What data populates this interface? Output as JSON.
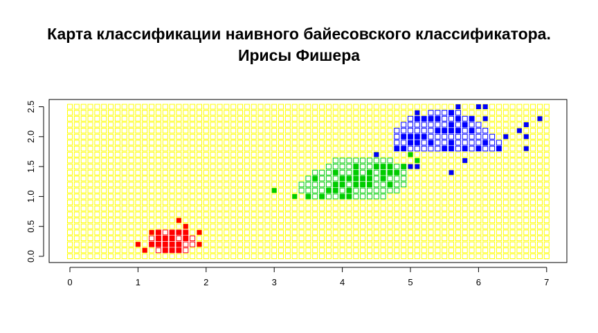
{
  "chart_data": {
    "type": "scatter",
    "title_lines": [
      "Карта классификации наивного байесовского классификатора.",
      "Ирисы Фишера"
    ],
    "xlabel": "",
    "ylabel": "",
    "xlim": [
      0,
      7
    ],
    "ylim": [
      0,
      2.5
    ],
    "x_ticks": [
      "0",
      "1",
      "2",
      "3",
      "4",
      "5",
      "6",
      "7"
    ],
    "y_ticks": [
      "0.0",
      "0.5",
      "1.0",
      "1.5",
      "2.0",
      "2.5"
    ],
    "grid": {
      "description": "classification map: hollow squares on a regular grid",
      "x_step": 0.1,
      "y_step": 0.1,
      "x_range": [
        0,
        7
      ],
      "y_range": [
        0,
        2.5
      ],
      "default_class": "background",
      "regions": [
        {
          "class": "setosa",
          "rows": [
            {
              "y": 0.1,
              "x": [
                1.3,
                1.7
              ]
            },
            {
              "y": 0.2,
              "x": [
                1.2,
                1.8
              ]
            },
            {
              "y": 0.3,
              "x": [
                1.2,
                1.8
              ]
            },
            {
              "y": 0.4,
              "x": [
                1.3,
                1.7
              ]
            }
          ]
        },
        {
          "class": "versicolor",
          "rows": [
            {
              "y": 1.0,
              "x": [
                3.5,
                4.6
              ]
            },
            {
              "y": 1.1,
              "x": [
                3.4,
                4.8
              ]
            },
            {
              "y": 1.2,
              "x": [
                3.4,
                4.9
              ]
            },
            {
              "y": 1.3,
              "x": [
                3.5,
                4.9
              ]
            },
            {
              "y": 1.4,
              "x": [
                3.6,
                4.9
              ]
            },
            {
              "y": 1.5,
              "x": [
                3.8,
                4.9
              ]
            },
            {
              "y": 1.6,
              "x": [
                3.9,
                4.7
              ]
            }
          ]
        },
        {
          "class": "virginica",
          "rows": [
            {
              "y": 1.8,
              "x": [
                4.8,
                6.3
              ]
            },
            {
              "y": 1.9,
              "x": [
                4.8,
                6.3
              ]
            },
            {
              "y": 2.0,
              "x": [
                4.8,
                6.2
              ]
            },
            {
              "y": 2.1,
              "x": [
                4.8,
                6.1
              ]
            },
            {
              "y": 2.2,
              "x": [
                4.9,
                6.0
              ]
            },
            {
              "y": 2.3,
              "x": [
                5.0,
                5.9
              ]
            },
            {
              "y": 2.4,
              "x": [
                5.3,
                5.7
              ]
            }
          ]
        }
      ]
    },
    "classes": {
      "background": "#ffff00",
      "setosa": "#ff0000",
      "versicolor": "#00cc00",
      "virginica": "#0000ff"
    },
    "series": [
      {
        "class": "setosa",
        "points": [
          [
            1.4,
            0.2
          ],
          [
            1.3,
            0.2
          ],
          [
            1.5,
            0.2
          ],
          [
            1.7,
            0.4
          ],
          [
            1.4,
            0.3
          ],
          [
            1.5,
            0.1
          ],
          [
            1.6,
            0.2
          ],
          [
            1.1,
            0.1
          ],
          [
            1.2,
            0.2
          ],
          [
            1.3,
            0.4
          ],
          [
            1.7,
            0.3
          ],
          [
            1.0,
            0.2
          ],
          [
            1.7,
            0.5
          ],
          [
            1.9,
            0.2
          ],
          [
            1.6,
            0.4
          ],
          [
            1.5,
            0.4
          ],
          [
            1.4,
            0.1
          ],
          [
            1.5,
            0.3
          ],
          [
            1.6,
            0.6
          ],
          [
            1.9,
            0.4
          ],
          [
            1.3,
            0.3
          ],
          [
            1.6,
            0.1
          ],
          [
            1.2,
            0.4
          ]
        ]
      },
      {
        "class": "versicolor",
        "points": [
          [
            4.7,
            1.4
          ],
          [
            4.5,
            1.5
          ],
          [
            4.9,
            1.5
          ],
          [
            4.0,
            1.3
          ],
          [
            4.6,
            1.5
          ],
          [
            3.3,
            1.0
          ],
          [
            4.6,
            1.3
          ],
          [
            3.9,
            1.4
          ],
          [
            3.5,
            1.0
          ],
          [
            4.2,
            1.5
          ],
          [
            4.0,
            1.0
          ],
          [
            4.7,
            1.4
          ],
          [
            3.6,
            1.3
          ],
          [
            4.4,
            1.4
          ],
          [
            4.5,
            1.5
          ],
          [
            4.1,
            1.0
          ],
          [
            4.5,
            1.5
          ],
          [
            3.9,
            1.1
          ],
          [
            4.8,
            1.8
          ],
          [
            4.0,
            1.3
          ],
          [
            4.9,
            1.5
          ],
          [
            4.7,
            1.2
          ],
          [
            4.3,
            1.3
          ],
          [
            4.4,
            1.4
          ],
          [
            4.8,
            1.4
          ],
          [
            5.0,
            1.7
          ],
          [
            4.5,
            1.5
          ],
          [
            3.5,
            1.0
          ],
          [
            3.8,
            1.1
          ],
          [
            3.7,
            1.0
          ],
          [
            3.9,
            1.2
          ],
          [
            5.1,
            1.6
          ],
          [
            4.5,
            1.5
          ],
          [
            4.7,
            1.5
          ],
          [
            4.4,
            1.3
          ],
          [
            4.1,
            1.3
          ],
          [
            4.0,
            1.3
          ],
          [
            4.4,
            1.2
          ],
          [
            4.6,
            1.4
          ],
          [
            4.0,
            1.2
          ],
          [
            3.0,
            1.1
          ],
          [
            4.2,
            1.3
          ],
          [
            4.2,
            1.2
          ],
          [
            4.3,
            1.3
          ],
          [
            4.1,
            1.3
          ],
          [
            4.2,
            1.4
          ],
          [
            4.6,
            1.4
          ],
          [
            4.1,
            1.1
          ],
          [
            4.5,
            1.7
          ],
          [
            4.3,
            1.2
          ]
        ]
      },
      {
        "class": "virginica",
        "points": [
          [
            6.0,
            2.5
          ],
          [
            5.1,
            1.9
          ],
          [
            5.9,
            2.1
          ],
          [
            5.6,
            1.8
          ],
          [
            5.8,
            2.2
          ],
          [
            6.6,
            2.1
          ],
          [
            4.5,
            1.7
          ],
          [
            6.3,
            1.8
          ],
          [
            5.8,
            1.8
          ],
          [
            6.1,
            2.5
          ],
          [
            5.1,
            2.0
          ],
          [
            5.3,
            1.9
          ],
          [
            5.5,
            2.1
          ],
          [
            5.0,
            2.0
          ],
          [
            5.1,
            2.4
          ],
          [
            5.3,
            2.3
          ],
          [
            5.5,
            1.8
          ],
          [
            6.7,
            2.2
          ],
          [
            6.9,
            2.3
          ],
          [
            5.0,
            1.5
          ],
          [
            5.7,
            2.3
          ],
          [
            4.9,
            2.0
          ],
          [
            6.7,
            2.0
          ],
          [
            4.9,
            1.8
          ],
          [
            5.7,
            2.1
          ],
          [
            6.0,
            1.8
          ],
          [
            4.8,
            1.8
          ],
          [
            4.9,
            1.8
          ],
          [
            5.6,
            2.1
          ],
          [
            5.8,
            1.6
          ],
          [
            6.1,
            1.9
          ],
          [
            6.4,
            2.0
          ],
          [
            5.6,
            2.2
          ],
          [
            5.1,
            1.5
          ],
          [
            5.6,
            1.4
          ],
          [
            6.1,
            2.3
          ],
          [
            5.6,
            2.4
          ],
          [
            5.5,
            1.8
          ],
          [
            4.8,
            1.8
          ],
          [
            5.4,
            2.1
          ],
          [
            5.6,
            2.4
          ],
          [
            5.1,
            2.3
          ],
          [
            5.9,
            2.3
          ],
          [
            5.7,
            2.5
          ],
          [
            5.2,
            2.3
          ],
          [
            5.0,
            1.9
          ],
          [
            5.2,
            2.0
          ],
          [
            5.4,
            2.3
          ],
          [
            6.7,
            1.8
          ],
          [
            5.6,
            1.9
          ]
        ]
      }
    ]
  }
}
